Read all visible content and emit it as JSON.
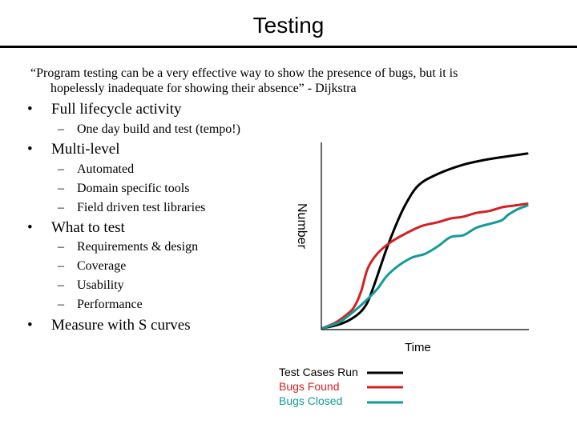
{
  "slide": {
    "title": "Testing",
    "quote_line1": "“Program testing can be a very effective way to show the presence of bugs, but it is",
    "quote_line2": "hopelessly inadequate for showing their absence” - Dijkstra",
    "bullets": [
      {
        "text": "Full lifecycle activity",
        "subs": [
          "One day build and test (tempo!)"
        ]
      },
      {
        "text": "Multi-level",
        "subs": [
          "Automated",
          "Domain specific tools",
          "Field driven test libraries"
        ]
      },
      {
        "text": "What to test",
        "subs": [
          "Requirements & design",
          "Coverage",
          "Usability",
          "Performance"
        ]
      },
      {
        "text": "Measure with S curves",
        "subs": []
      }
    ],
    "bullet_glyph": "•",
    "dash_glyph": "–"
  },
  "chart_data": {
    "type": "line",
    "xlabel": "Time",
    "ylabel": "Number",
    "grid": false,
    "legend_placement": "bottom",
    "series": [
      {
        "name": "Test Cases Run",
        "color": "#000000",
        "x": [
          0,
          3,
          6,
          9,
          12,
          14,
          16,
          18,
          20,
          23,
          26,
          30,
          36,
          44,
          52,
          60,
          64
        ],
        "y": [
          0,
          1,
          2.5,
          5,
          9,
          14,
          23,
          33,
          43,
          56,
          67,
          77,
          83,
          88,
          91,
          93,
          94
        ]
      },
      {
        "name": "Bugs Found",
        "color": "#d42020",
        "x": [
          0,
          4,
          8,
          10,
          12,
          14,
          17,
          21,
          26,
          31,
          36,
          40,
          44,
          48,
          52,
          56,
          60,
          64
        ],
        "y": [
          0,
          3,
          8,
          12,
          20,
          32,
          40,
          46,
          51,
          55,
          57,
          59,
          60,
          62,
          63,
          65,
          66,
          67
        ]
      },
      {
        "name": "Bugs Closed",
        "color": "#139a9a",
        "x": [
          0,
          5,
          9,
          13,
          17,
          20,
          24,
          28,
          32,
          36,
          40,
          44,
          48,
          52,
          56,
          58,
          61,
          64
        ],
        "y": [
          0,
          3,
          8,
          14,
          21,
          28,
          34,
          38,
          40,
          44,
          49,
          50,
          54,
          56,
          58,
          61,
          64,
          66
        ]
      }
    ],
    "xlim": [
      0,
      64
    ],
    "ylim": [
      0,
      100
    ]
  }
}
